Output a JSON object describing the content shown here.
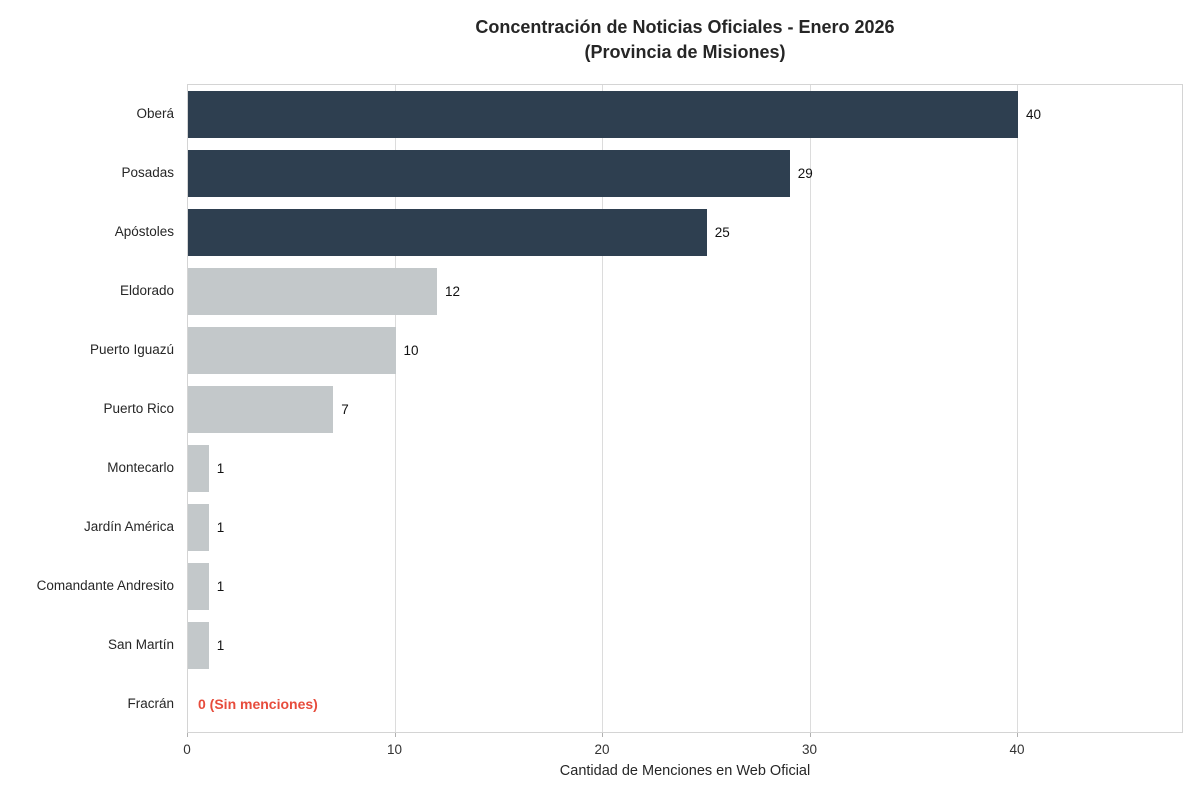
{
  "title_line1": "Concentración de Noticias Oficiales - Enero 2026",
  "title_line2": "(Provincia de Misiones)",
  "xlabel": "Cantidad de Menciones en Web Oficial",
  "chart_data": {
    "type": "bar",
    "orientation": "horizontal",
    "title": "Concentración de Noticias Oficiales - Enero 2026 (Provincia de Misiones)",
    "xlabel": "Cantidad de Menciones en Web Oficial",
    "ylabel": "",
    "categories": [
      "Oberá",
      "Posadas",
      "Apóstoles",
      "Eldorado",
      "Puerto Iguazú",
      "Puerto Rico",
      "Montecarlo",
      "Jardín América",
      "Comandante Andresito",
      "San Martín",
      "Fracrán"
    ],
    "values": [
      40,
      29,
      25,
      12,
      10,
      7,
      1,
      1,
      1,
      1,
      0
    ],
    "bar_colors": [
      "#2e3f50",
      "#2e3f50",
      "#2e3f50",
      "#c3c8ca",
      "#c3c8ca",
      "#c3c8ca",
      "#c3c8ca",
      "#c3c8ca",
      "#c3c8ca",
      "#c3c8ca",
      null
    ],
    "value_labels": [
      "40",
      "29",
      "25",
      "12",
      "10",
      "7",
      "1",
      "1",
      "1",
      "1",
      "0 (Sin menciones)"
    ],
    "zero_annotation": {
      "text": "0 (Sin menciones)",
      "color": "#e74c3c"
    },
    "xlim": [
      0,
      48
    ],
    "xticks": [
      0,
      10,
      20,
      30,
      40
    ],
    "xtick_labels": [
      "0",
      "10",
      "20",
      "30",
      "40"
    ],
    "grid": true,
    "grid_color": "#dcdcdc",
    "legend": "none",
    "colors": {
      "dark_bar": "#2e3f50",
      "light_bar": "#c3c8ca",
      "annotation_red": "#e74c3c",
      "plot_border": "#d4d4d4",
      "text": "#262626"
    }
  }
}
